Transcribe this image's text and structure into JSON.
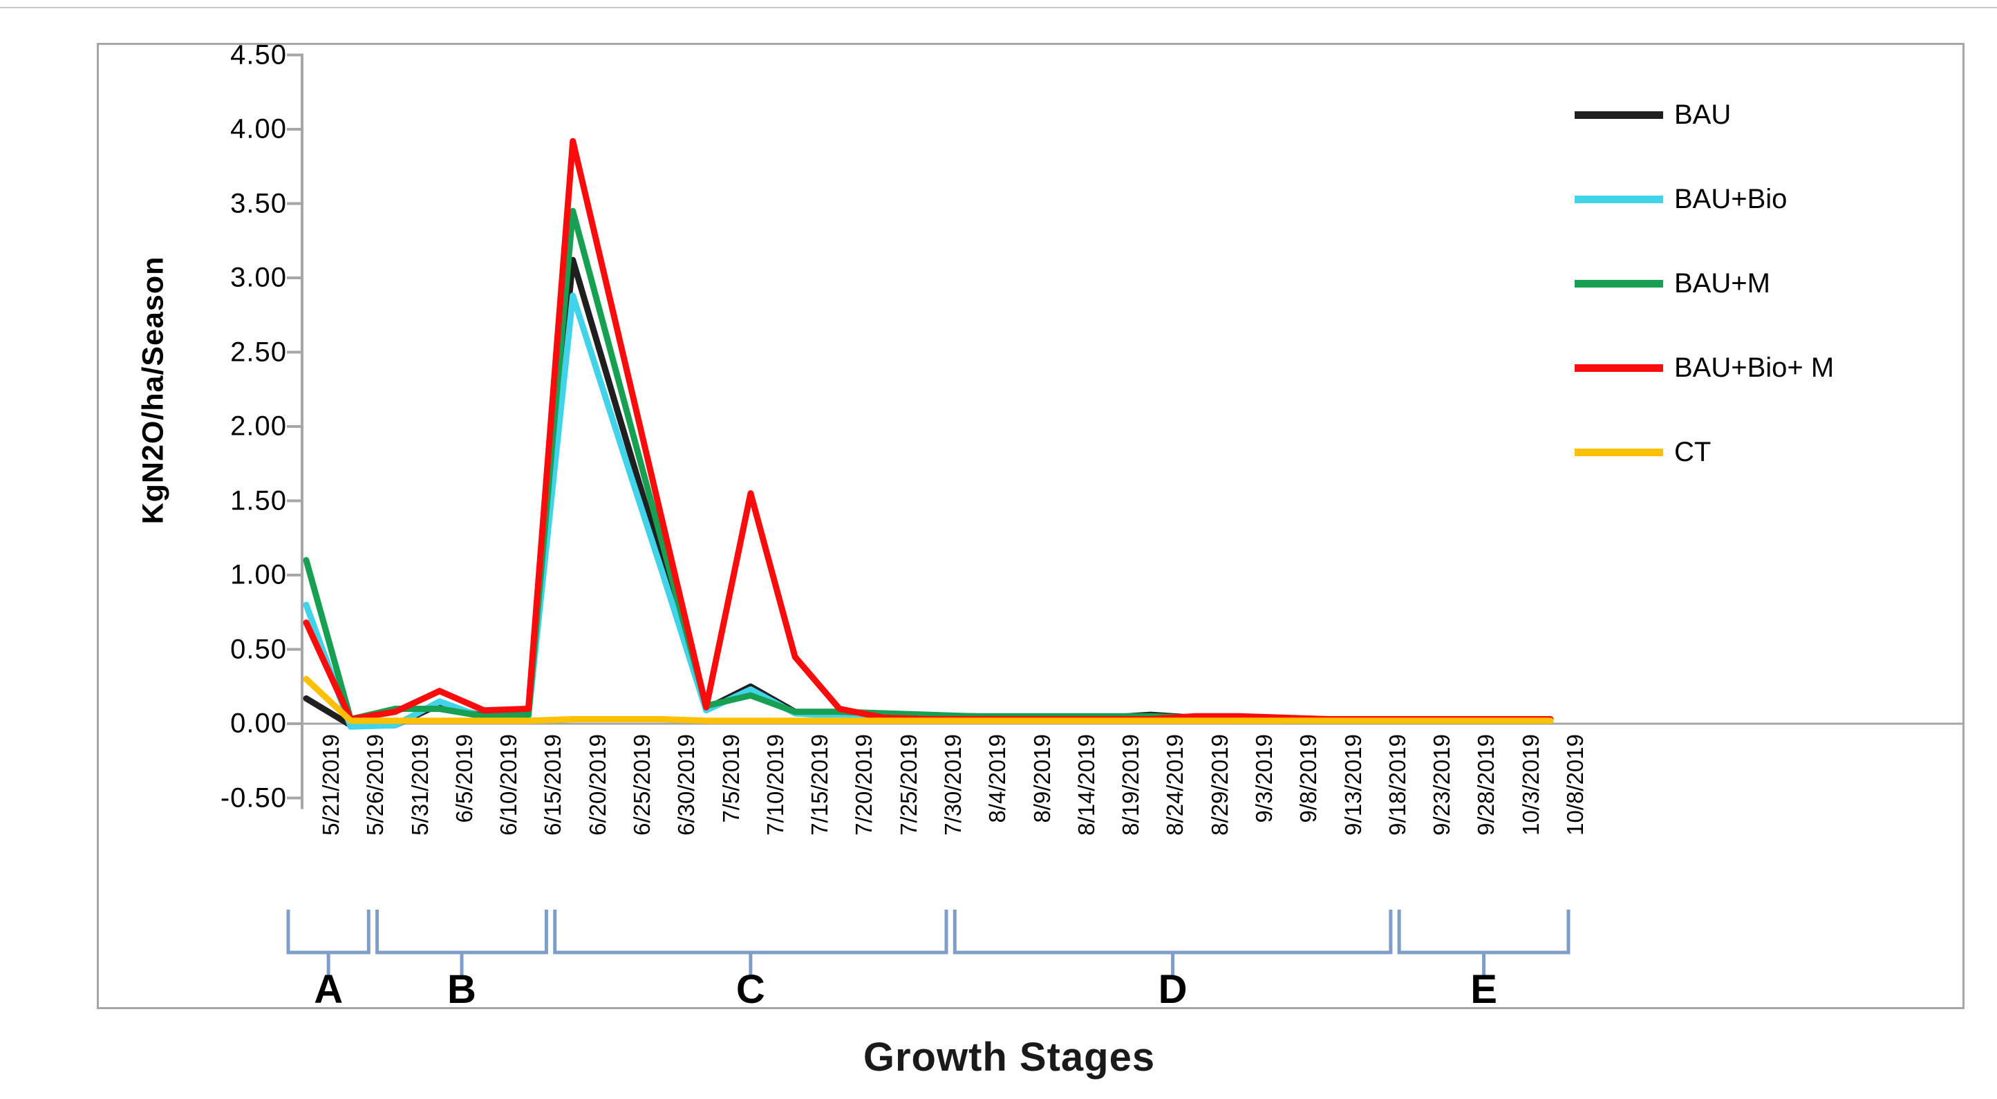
{
  "figure": {
    "y_axis_label": "KgN2O/ha/Season",
    "x_axis_title": "Growth Stages"
  },
  "colors": {
    "axis_gray": "#a6a6a6",
    "bracket_blue": "#7e9dc9",
    "frame_border": "#a6a6a6"
  },
  "legend": {
    "position": "right",
    "items": [
      {
        "label": "BAU",
        "color": "#1f1f1f"
      },
      {
        "label": "BAU+Bio",
        "color": "#41d3ea"
      },
      {
        "label": "BAU+M",
        "color": "#17a052"
      },
      {
        "label": "BAU+Bio+ M",
        "color": "#fb0c0c"
      },
      {
        "label": "CT",
        "color": "#ffc000"
      }
    ]
  },
  "growth_stages": [
    {
      "label": "A",
      "from_index": 0,
      "to_index": 1
    },
    {
      "label": "B",
      "from_index": 2,
      "to_index": 5
    },
    {
      "label": "C",
      "from_index": 6,
      "to_index": 14
    },
    {
      "label": "D",
      "from_index": 15,
      "to_index": 24
    },
    {
      "label": "E",
      "from_index": 25,
      "to_index": 28
    }
  ],
  "chart_data": {
    "type": "line",
    "title": "",
    "xlabel": "Growth Stages",
    "ylabel": "KgN2O/ha/Season",
    "ylim": [
      -0.5,
      4.5
    ],
    "y_tick_step": 0.5,
    "y_ticks": [
      "4.50",
      "4.00",
      "3.50",
      "3.00",
      "2.50",
      "2.00",
      "1.50",
      "1.00",
      "0.50",
      "0.00",
      "-0.50"
    ],
    "grid": false,
    "legend_position": "right",
    "categories": [
      "5/21/2019",
      "5/26/2019",
      "5/31/2019",
      "6/5/2019",
      "6/10/2019",
      "6/15/2019",
      "6/20/2019",
      "6/25/2019",
      "6/30/2019",
      "7/5/2019",
      "7/10/2019",
      "7/15/2019",
      "7/20/2019",
      "7/25/2019",
      "7/30/2019",
      "8/4/2019",
      "8/9/2019",
      "8/14/2019",
      "8/19/2019",
      "8/24/2019",
      "8/29/2019",
      "9/3/2019",
      "9/8/2019",
      "9/13/2019",
      "9/18/2019",
      "9/23/2019",
      "9/28/2019",
      "10/3/2019",
      "10/8/2019"
    ],
    "series": [
      {
        "name": "BAU",
        "color": "#1f1f1f",
        "values": [
          0.17,
          -0.01,
          -0.01,
          0.13,
          0.05,
          0.06,
          3.12,
          2.11,
          1.11,
          0.1,
          0.25,
          0.08,
          0.06,
          0.05,
          0.05,
          0.05,
          0.04,
          0.03,
          0.04,
          0.06,
          0.04,
          0.03,
          0.02,
          0.02,
          0.02,
          0.02,
          0.02,
          0.02,
          0.02
        ]
      },
      {
        "name": "BAU+Bio",
        "color": "#41d3ea",
        "values": [
          0.8,
          -0.02,
          -0.01,
          0.15,
          0.04,
          0.05,
          2.88,
          1.95,
          1.03,
          0.09,
          0.23,
          0.07,
          0.05,
          0.04,
          0.04,
          0.03,
          0.03,
          0.03,
          0.03,
          0.03,
          0.03,
          0.02,
          0.02,
          0.02,
          0.02,
          0.02,
          0.02,
          0.02,
          0.02
        ]
      },
      {
        "name": "BAU+M",
        "color": "#17a052",
        "values": [
          1.1,
          0.03,
          0.1,
          0.1,
          0.05,
          0.06,
          3.45,
          2.34,
          1.23,
          0.12,
          0.19,
          0.08,
          0.08,
          0.07,
          0.06,
          0.05,
          0.05,
          0.05,
          0.05,
          0.05,
          0.04,
          0.04,
          0.03,
          0.03,
          0.03,
          0.03,
          0.03,
          0.03,
          0.03
        ]
      },
      {
        "name": "BAU+Bio+ M",
        "color": "#fb0c0c",
        "values": [
          0.68,
          0.03,
          0.08,
          0.22,
          0.09,
          0.1,
          3.92,
          2.65,
          1.38,
          0.11,
          1.55,
          0.45,
          0.1,
          0.04,
          0.03,
          0.03,
          0.03,
          0.03,
          0.03,
          0.03,
          0.05,
          0.05,
          0.04,
          0.03,
          0.03,
          0.03,
          0.03,
          0.03,
          0.03
        ]
      },
      {
        "name": "CT",
        "color": "#ffc000",
        "values": [
          0.3,
          0.02,
          0.02,
          0.02,
          0.02,
          0.02,
          0.03,
          0.03,
          0.03,
          0.02,
          0.02,
          0.02,
          0.02,
          0.02,
          0.02,
          0.02,
          0.02,
          0.02,
          0.02,
          0.02,
          0.02,
          0.02,
          0.02,
          0.02,
          0.02,
          0.02,
          0.02,
          0.02,
          0.02
        ]
      }
    ]
  }
}
